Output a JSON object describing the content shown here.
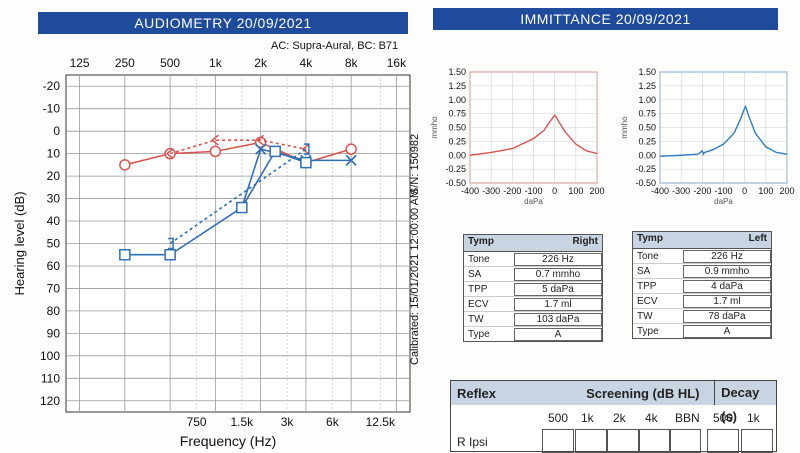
{
  "audiometry": {
    "header": "AUDIOMETRY  20/09/2021",
    "transducer": "AC: Supra-Aural, BC: B71",
    "serial": "S/N: 150982",
    "calibrated": "Calibrated: 15/01/2021 12:00:00 AM"
  },
  "chart_data": [
    {
      "type": "line",
      "title": "",
      "xlabel": "Frequency (Hz)",
      "ylabel": "Hearing level (dB)",
      "x_top_ticks": [
        "125",
        "250",
        "500",
        "1k",
        "2k",
        "4k",
        "8k",
        "16k"
      ],
      "x_bottom_ticks": [
        "750",
        "1.5k",
        "3k",
        "6k",
        "12.5k"
      ],
      "y_ticks": [
        "-20",
        "-10",
        "0",
        "10",
        "20",
        "30",
        "40",
        "50",
        "60",
        "70",
        "80",
        "90",
        "100",
        "110",
        "120"
      ],
      "ylim": [
        -25,
        125
      ],
      "y_inverted": true,
      "x_scale": "log2",
      "series": [
        {
          "ear": "right",
          "kind": "AC",
          "color": "#d9534f",
          "symbol": "circle",
          "x": [
            250,
            500,
            1000,
            2000,
            4000,
            8000
          ],
          "y": [
            15,
            10,
            9,
            5,
            14,
            8
          ]
        },
        {
          "ear": "right",
          "kind": "BC",
          "color": "#d9534f",
          "symbol": "lt",
          "x": [
            500,
            1000,
            2000,
            4000
          ],
          "y": [
            10,
            4,
            4,
            8
          ]
        },
        {
          "ear": "left",
          "kind": "AC",
          "color": "#2f6fb5",
          "symbol": "cross",
          "x": [
            1500,
            2000,
            4000,
            8000
          ],
          "y": [
            34,
            8,
            13,
            13
          ]
        },
        {
          "ear": "left",
          "kind": "masked AC",
          "color": "#2f6fb5",
          "symbol": "square",
          "x": [
            250,
            500,
            1500,
            2500,
            4000
          ],
          "y": [
            55,
            55,
            34,
            9,
            14
          ]
        },
        {
          "ear": "left",
          "kind": "masked BC",
          "color": "#2f6fb5",
          "symbol": "bracket",
          "x": [
            500,
            4000
          ],
          "y": [
            50,
            8
          ]
        }
      ]
    },
    {
      "type": "line",
      "title": "",
      "xlabel": "daPa",
      "ylabel": "mmho",
      "color": "#d9534f",
      "xlim": [
        -400,
        200
      ],
      "ylim": [
        -0.5,
        1.5
      ],
      "x_ticks": [
        "-400",
        "-300",
        "-200",
        "-100",
        "0",
        "100",
        "200"
      ],
      "y_ticks": [
        "1.50",
        "1.25",
        "1.00",
        "0.75",
        "0.50",
        "0.25",
        "0.00",
        "-0.25",
        "-0.50"
      ],
      "x": [
        -400,
        -300,
        -200,
        -100,
        -50,
        -20,
        0,
        5,
        20,
        50,
        100,
        150,
        200
      ],
      "y": [
        0.0,
        0.05,
        0.12,
        0.3,
        0.45,
        0.62,
        0.72,
        0.7,
        0.6,
        0.42,
        0.2,
        0.08,
        0.03
      ]
    },
    {
      "type": "line",
      "title": "",
      "xlabel": "daPa",
      "ylabel": "mmho",
      "color": "#2f7ec4",
      "xlim": [
        -400,
        200
      ],
      "ylim": [
        -0.5,
        1.5
      ],
      "x_ticks": [
        "-400",
        "-300",
        "-200",
        "-100",
        "0",
        "100",
        "200"
      ],
      "y_ticks": [
        "1.50",
        "1.25",
        "1.00",
        "0.75",
        "0.50",
        "0.25",
        "0.00",
        "-0.25",
        "-0.50"
      ],
      "x": [
        -400,
        -300,
        -220,
        -200,
        -195,
        -190,
        -150,
        -100,
        -50,
        -20,
        0,
        4,
        20,
        50,
        100,
        150,
        200
      ],
      "y": [
        -0.02,
        0.0,
        0.02,
        0.08,
        0.02,
        0.05,
        0.1,
        0.2,
        0.4,
        0.65,
        0.85,
        0.88,
        0.7,
        0.4,
        0.15,
        0.05,
        0.02
      ]
    }
  ],
  "immittance": {
    "header": "IMMITTANCE  20/09/2021",
    "right": {
      "tab": "Tymp",
      "side": "Right",
      "rows": [
        {
          "label": "Tone",
          "value": "226 Hz"
        },
        {
          "label": "SA",
          "value": "0.7 mmho"
        },
        {
          "label": "TPP",
          "value": "5 daPa"
        },
        {
          "label": "ECV",
          "value": "1.7 ml"
        },
        {
          "label": "TW",
          "value": "103 daPa"
        },
        {
          "label": "Type",
          "value": "A"
        }
      ]
    },
    "left": {
      "tab": "Tymp",
      "side": "Left",
      "rows": [
        {
          "label": "Tone",
          "value": "226 Hz"
        },
        {
          "label": "SA",
          "value": "0.9 mmho"
        },
        {
          "label": "TPP",
          "value": "4 daPa"
        },
        {
          "label": "ECV",
          "value": "1.7 ml"
        },
        {
          "label": "TW",
          "value": "78 daPa"
        },
        {
          "label": "Type",
          "value": "A"
        }
      ]
    }
  },
  "reflex": {
    "title": "Reflex",
    "screening": "Screening (dB HL)",
    "decay": "Decay (s)",
    "screening_cols": [
      "500",
      "1k",
      "2k",
      "4k",
      "BBN"
    ],
    "decay_cols": [
      "500",
      "1k"
    ],
    "row_label": "R Ipsi"
  }
}
